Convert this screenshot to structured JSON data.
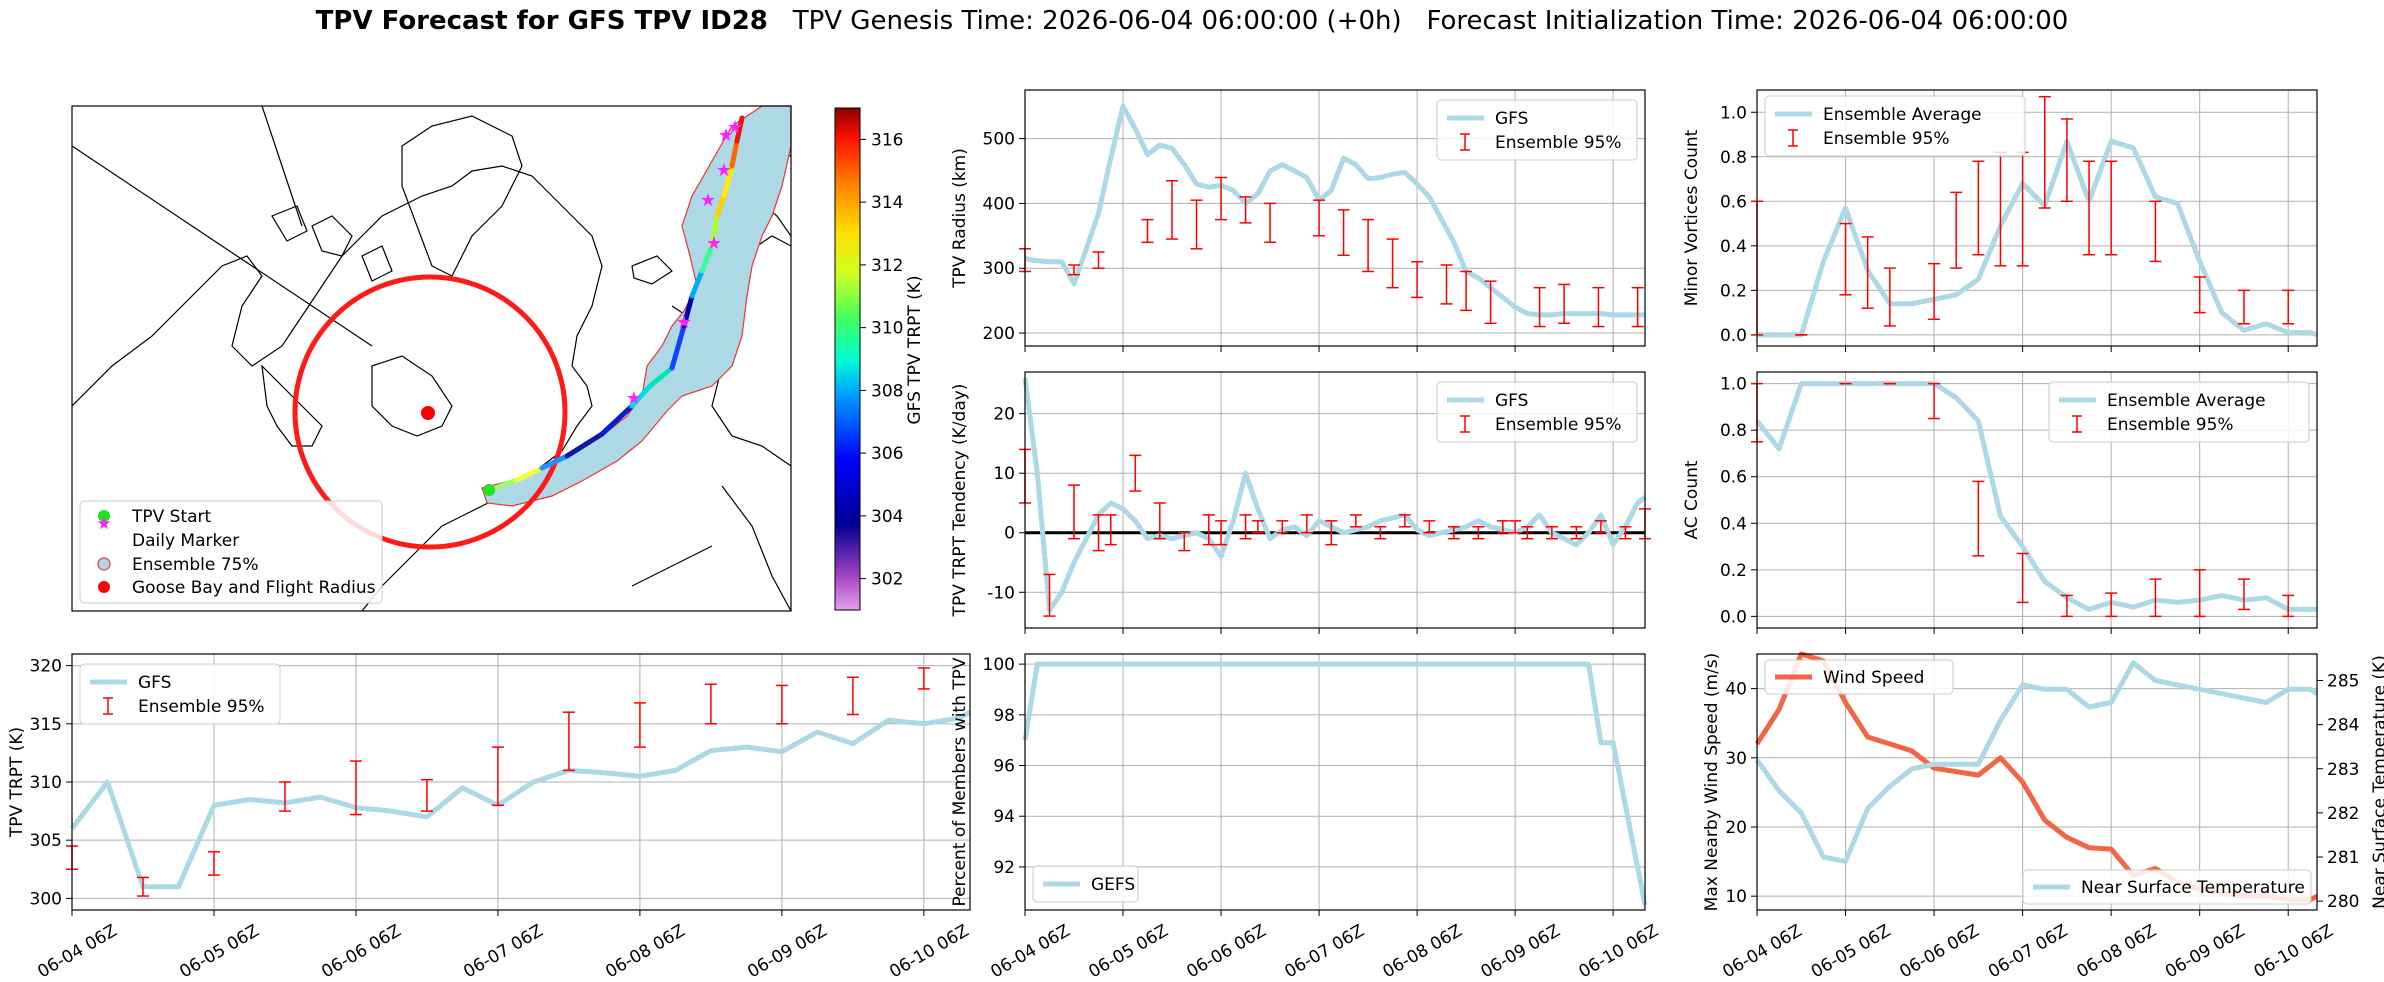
{
  "title": {
    "bold": "TPV Forecast for GFS TPV ID28",
    "genesis": "TPV Genesis Time: 2026-06-04 06:00:00 (+0h)",
    "init": "Forecast Initialization Time: 2026-06-04 06:00:00"
  },
  "time_ticks": [
    "06-04 06Z",
    "06-05 06Z",
    "06-06 06Z",
    "06-07 06Z",
    "06-08 06Z",
    "06-09 06Z",
    "06-10 06Z"
  ],
  "map": {
    "legend": [
      "TPV Start",
      "Daily Marker",
      "Ensemble 75%",
      "Goose Bay and Flight Radius"
    ],
    "colorbar": {
      "label": "GFS TPV TRPT (K)",
      "ticks": [
        302,
        304,
        306,
        308,
        310,
        312,
        314,
        316
      ],
      "range": [
        301,
        317
      ]
    }
  },
  "chart_data": [
    {
      "id": "radius",
      "type": "line",
      "ylabel": "TPV Radius (km)",
      "yticks": [
        200,
        300,
        400,
        500
      ],
      "ylim": [
        180,
        575
      ],
      "xlim": [
        0,
        25.3
      ],
      "legend": [
        "GFS",
        "Ensemble 95%"
      ],
      "series": [
        {
          "name": "GFS",
          "x": [
            0,
            0.4,
            1,
            1.5,
            2,
            2.5,
            3,
            3.5,
            4,
            4.5,
            5,
            5.5,
            6,
            6.5,
            7,
            7.5,
            8,
            8.5,
            9,
            9.5,
            10,
            10.5,
            11,
            11.5,
            12,
            12.5,
            13,
            13.5,
            14,
            14.5,
            15,
            15.5,
            16,
            16.5,
            17,
            17.5,
            18,
            18.5,
            19,
            19.5,
            20,
            20.5,
            21,
            21.5,
            22,
            22.5,
            23,
            23.5,
            24,
            24.5,
            25.3
          ],
          "y": [
            315,
            312,
            310,
            310,
            276,
            330,
            385,
            470,
            550,
            515,
            475,
            490,
            485,
            460,
            430,
            425,
            428,
            420,
            400,
            415,
            450,
            460,
            450,
            440,
            405,
            420,
            470,
            460,
            438,
            440,
            445,
            448,
            430,
            410,
            375,
            340,
            295,
            285,
            270,
            255,
            240,
            230,
            228,
            228,
            230,
            230,
            230,
            230,
            228,
            228,
            228
          ]
        }
      ],
      "errorbars": {
        "x": [
          0,
          2,
          3,
          5,
          6,
          7,
          8,
          9,
          10,
          12,
          13,
          14,
          15,
          16,
          17.2,
          18,
          19,
          21,
          22,
          23.4,
          25
        ],
        "y_mid": [
          320,
          300,
          315,
          355,
          380,
          378,
          400,
          395,
          370,
          360,
          350,
          320,
          300,
          280,
          260,
          250,
          235,
          235,
          235,
          240,
          240
        ],
        "lo": [
          295,
          290,
          300,
          340,
          345,
          330,
          375,
          370,
          340,
          350,
          320,
          295,
          270,
          255,
          245,
          235,
          215,
          210,
          215,
          210,
          210
        ],
        "hi": [
          330,
          305,
          325,
          375,
          435,
          405,
          440,
          410,
          400,
          405,
          390,
          375,
          345,
          310,
          305,
          295,
          280,
          270,
          275,
          270,
          270
        ]
      }
    },
    {
      "id": "tendency",
      "type": "line",
      "ylabel": "TPV TRPT Tendency (K/day)",
      "yticks": [
        -10,
        0,
        10,
        20
      ],
      "ylim": [
        -16,
        27
      ],
      "xlim": [
        0,
        25.3
      ],
      "zero_line": true,
      "legend": [
        "GFS",
        "Ensemble 95%"
      ],
      "series": [
        {
          "name": "GFS",
          "x": [
            0,
            0.5,
            1,
            1.5,
            2,
            2.5,
            3,
            3.5,
            4,
            4.5,
            5,
            5.5,
            6,
            6.5,
            7,
            7.5,
            8,
            8.5,
            9,
            9.5,
            10,
            10.5,
            11,
            11.5,
            12,
            12.5,
            13,
            13.5,
            14,
            14.5,
            15,
            15.5,
            16,
            16.5,
            17,
            17.5,
            18,
            18.5,
            19,
            19.5,
            20,
            20.5,
            21,
            21.5,
            22,
            22.5,
            23,
            23.5,
            24,
            24.5,
            25,
            25.3
          ],
          "y": [
            26,
            10,
            -13,
            -10,
            -5,
            -1,
            3,
            5,
            4,
            2,
            -1,
            -0.5,
            -1,
            -0.5,
            0,
            -1,
            -4,
            2,
            10,
            4,
            -1,
            0.5,
            1,
            -0.5,
            2,
            1,
            0,
            0.5,
            1,
            2,
            2.5,
            3,
            0.5,
            -0.5,
            0,
            0.5,
            1,
            2,
            1,
            0.5,
            0,
            1,
            3,
            0,
            -1,
            -2,
            0,
            3,
            -2,
            1,
            5,
            6
          ]
        }
      ],
      "errorbars": {
        "x": [
          0,
          1,
          2,
          3,
          3.5,
          4.5,
          5.5,
          6.5,
          7.5,
          8,
          9,
          9.5,
          10.5,
          11.5,
          12.5,
          13.5,
          14.5,
          15.5,
          16.5,
          17.5,
          18.5,
          19.5,
          20,
          20.5,
          21.5,
          22.5,
          23.5,
          24.5,
          25.3
        ],
        "y_mid": [
          10,
          -10,
          3,
          0,
          1,
          10,
          1,
          -1,
          1,
          0,
          2,
          1,
          1,
          2,
          0,
          2,
          0,
          2,
          1,
          0,
          0,
          1,
          1,
          0,
          0,
          0,
          1,
          0,
          1
        ],
        "lo": [
          5,
          -14,
          -1,
          -3,
          -2,
          7,
          -1,
          -3,
          -2,
          -2,
          -1,
          0,
          0,
          0,
          -2,
          1,
          -1,
          1,
          0,
          -1,
          -1,
          0,
          0,
          -1,
          -1,
          -1,
          0,
          -1,
          -1
        ],
        "hi": [
          14,
          -7,
          8,
          3,
          3,
          13,
          5,
          0,
          3,
          2,
          3,
          2,
          2,
          3,
          2,
          3,
          1,
          3,
          2,
          1,
          1,
          2,
          2,
          1,
          1,
          1,
          2,
          1,
          4
        ]
      }
    },
    {
      "id": "trpt",
      "type": "line",
      "ylabel": "TPV TRPT (K)",
      "yticks": [
        300,
        305,
        310,
        315,
        320
      ],
      "ylim": [
        299,
        321
      ],
      "xlim": [
        0,
        25.3
      ],
      "legend": [
        "GFS",
        "Ensemble 95%"
      ],
      "series": [
        {
          "name": "GFS",
          "x": [
            0,
            1,
            2,
            3,
            4,
            5,
            6,
            7,
            8,
            9,
            10,
            11,
            12,
            13,
            14,
            15,
            16,
            17,
            18,
            19,
            20,
            21,
            22,
            23,
            24,
            25,
            25.3
          ],
          "y": [
            306,
            310,
            301,
            301,
            308,
            308.5,
            308.2,
            308.7,
            307.8,
            307.5,
            307,
            309.5,
            308,
            310,
            311,
            310.8,
            310.5,
            311,
            312.7,
            313,
            312.6,
            314.3,
            313.3,
            315.3,
            315,
            315.5,
            316
          ]
        }
      ],
      "errorbars": {
        "x": [
          0,
          2,
          4,
          6,
          8,
          10,
          12,
          14,
          16,
          18,
          20,
          22,
          24
        ],
        "y_mid": [
          303.5,
          301,
          303,
          308.7,
          309.5,
          308.7,
          311,
          314,
          315,
          316.5,
          316.3,
          317.5,
          319
        ],
        "lo": [
          302.5,
          300.2,
          302,
          307.5,
          307.2,
          307.5,
          308,
          311,
          313,
          315,
          315,
          315.8,
          318
        ],
        "hi": [
          304.5,
          301.8,
          304,
          310,
          311.8,
          310.2,
          313,
          316,
          316.8,
          318.4,
          318.3,
          319,
          319.8
        ]
      }
    },
    {
      "id": "members",
      "type": "line",
      "ylabel": "Percent of Members with TPV",
      "yticks": [
        92,
        94,
        96,
        98,
        100
      ],
      "ylim": [
        90.3,
        100.4
      ],
      "xlim": [
        0,
        25.3
      ],
      "legend": [
        "GEFS"
      ],
      "series": [
        {
          "name": "GEFS",
          "x": [
            0,
            0.5,
            1,
            23,
            23.5,
            24,
            25.3
          ],
          "y": [
            97,
            100,
            100,
            100,
            96.9,
            96.9,
            90.5
          ]
        }
      ]
    },
    {
      "id": "minor",
      "type": "line",
      "ylabel": "Minor Vortices Count",
      "yticks": [
        0.0,
        0.2,
        0.4,
        0.6,
        0.8,
        1.0
      ],
      "ylim": [
        -0.05,
        1.1
      ],
      "xlim": [
        0,
        25.3
      ],
      "legend": [
        "Ensemble Average",
        "Ensemble 95%"
      ],
      "series": [
        {
          "name": "Ensemble Average",
          "x": [
            0,
            1,
            2,
            3,
            4,
            5,
            6,
            7,
            8,
            9,
            10,
            11,
            12,
            13,
            14,
            15,
            16,
            17,
            18,
            19,
            20,
            21,
            22,
            23,
            24,
            25,
            25.3
          ],
          "y": [
            0,
            0,
            0,
            0.33,
            0.57,
            0.29,
            0.14,
            0.14,
            0.16,
            0.18,
            0.25,
            0.49,
            0.68,
            0.58,
            0.87,
            0.6,
            0.87,
            0.84,
            0.62,
            0.59,
            0.33,
            0.1,
            0.02,
            0.05,
            0.01,
            0.01,
            0
          ]
        }
      ],
      "errorbars": {
        "x": [
          0,
          2,
          4,
          5,
          6,
          8,
          9,
          10,
          11,
          12,
          13,
          14,
          15,
          16,
          18,
          20,
          22,
          24
        ],
        "y_mid": [
          0.3,
          0,
          0.4,
          0.28,
          0.17,
          0.18,
          0.45,
          0.52,
          0.57,
          0.57,
          0.69,
          0.84,
          0.57,
          0.57,
          0.43,
          0.15,
          0.1,
          0.1
        ],
        "lo": [
          0,
          0,
          0.18,
          0.12,
          0.04,
          0.07,
          0.3,
          0.36,
          0.31,
          0.31,
          0.57,
          0.6,
          0.36,
          0.36,
          0.33,
          0.1,
          0.05,
          0.05
        ],
        "hi": [
          0.6,
          0,
          0.5,
          0.44,
          0.3,
          0.32,
          0.64,
          0.78,
          0.82,
          0.82,
          1.07,
          0.97,
          0.78,
          0.78,
          0.6,
          0.26,
          0.2,
          0.2
        ]
      }
    },
    {
      "id": "ac",
      "type": "line",
      "ylabel": "AC Count",
      "yticks": [
        0.0,
        0.2,
        0.4,
        0.6,
        0.8,
        1.0
      ],
      "ylim": [
        -0.05,
        1.05
      ],
      "xlim": [
        0,
        25.3
      ],
      "legend": [
        "Ensemble Average",
        "Ensemble 95%"
      ],
      "series": [
        {
          "name": "Ensemble Average",
          "x": [
            0,
            1,
            2,
            3,
            4,
            5,
            6,
            7,
            8,
            9,
            10,
            11,
            12,
            13,
            14,
            15,
            16,
            17,
            18,
            19,
            20,
            21,
            22,
            23,
            24,
            25,
            25.3
          ],
          "y": [
            0.84,
            0.72,
            1,
            1,
            1,
            1,
            1,
            1,
            1,
            0.94,
            0.84,
            0.43,
            0.3,
            0.15,
            0.08,
            0.03,
            0.06,
            0.04,
            0.07,
            0.06,
            0.07,
            0.09,
            0.07,
            0.08,
            0.03,
            0.03,
            0.03
          ]
        }
      ],
      "errorbars": {
        "x": [
          0,
          4,
          6,
          8,
          10,
          12,
          14,
          16,
          18,
          20,
          22,
          24
        ],
        "y_mid": [
          0.9,
          1,
          1,
          0.95,
          0.42,
          0.17,
          0.05,
          0.05,
          0.08,
          0.1,
          0.1,
          0.05
        ],
        "lo": [
          0.75,
          1,
          1,
          0.85,
          0.26,
          0.06,
          0,
          0,
          0,
          0,
          0.03,
          0
        ],
        "hi": [
          1.0,
          1,
          1,
          1.0,
          0.58,
          0.27,
          0.09,
          0.1,
          0.16,
          0.2,
          0.16,
          0.09
        ]
      }
    },
    {
      "id": "wind",
      "type": "line",
      "ylabel": "Max Nearby Wind Speed (m/s)",
      "ylabel2": "Near Surface Temperature (K)",
      "yticks": [
        10,
        20,
        30,
        40
      ],
      "ylim": [
        8,
        45
      ],
      "yticks2": [
        280,
        281,
        282,
        283,
        284,
        285
      ],
      "ylim2": [
        279.8,
        285.6
      ],
      "xlim": [
        0,
        25.3
      ],
      "series": [
        {
          "name": "Wind Speed",
          "axis": "left",
          "x": [
            0,
            1,
            2,
            3,
            4,
            5,
            6,
            7,
            8,
            9,
            10,
            11,
            12,
            13,
            14,
            15,
            16,
            17,
            18,
            19,
            20,
            21,
            22,
            23,
            24,
            25,
            25.3
          ],
          "y": [
            32,
            37,
            45,
            44,
            38,
            33,
            32,
            31,
            28.5,
            28,
            27.5,
            30,
            26.5,
            21,
            18.5,
            17,
            16.8,
            13,
            14,
            12,
            11,
            10.5,
            10,
            10,
            9.5,
            9.5,
            10
          ]
        },
        {
          "name": "Near Surface Temperature",
          "axis": "right",
          "x": [
            0,
            1,
            2,
            3,
            4,
            5,
            6,
            7,
            8,
            9,
            10,
            11,
            12,
            13,
            14,
            15,
            16,
            17,
            18,
            19,
            20,
            21,
            22,
            23,
            24,
            25,
            25.3
          ],
          "y": [
            283.2,
            282.5,
            282,
            281,
            280.9,
            282.1,
            282.6,
            283,
            283.1,
            283.1,
            283.1,
            284.1,
            284.9,
            284.8,
            284.8,
            284.4,
            284.5,
            285.4,
            285,
            284.9,
            284.8,
            284.7,
            284.6,
            284.5,
            284.8,
            284.8,
            284.7
          ]
        }
      ]
    }
  ],
  "colors": {
    "gfs": "#add8e6",
    "error": "#ff0000",
    "wind": "#f26545",
    "temp_axis": "#4169e1"
  }
}
